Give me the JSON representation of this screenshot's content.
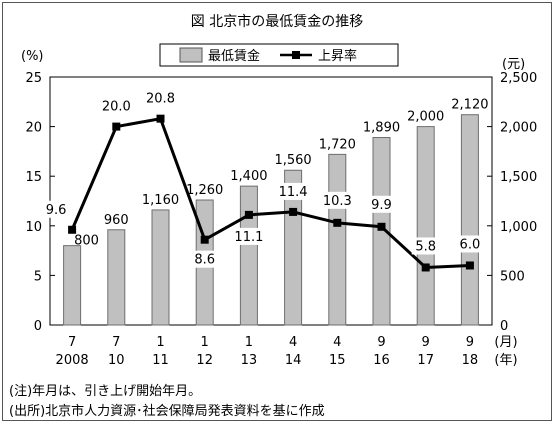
{
  "chart_data": {
    "type": "bar",
    "title": "図 北京市の最低賃金の推移",
    "legend": {
      "bar": "最低賃金",
      "line": "上昇率",
      "position": "top-center"
    },
    "y_left": {
      "label": "(%)",
      "min": 0,
      "max": 25,
      "ticks": [
        0,
        5,
        10,
        15,
        20,
        25
      ]
    },
    "y_right": {
      "label": "(元)",
      "min": 0,
      "max": 2500,
      "ticks": [
        "0",
        "500",
        "1,000",
        "1,500",
        "2,000",
        "2,500"
      ]
    },
    "x_units": {
      "month": "(月)",
      "year": "(年)"
    },
    "categories": [
      {
        "month": "7",
        "year": "2008"
      },
      {
        "month": "7",
        "year": "10"
      },
      {
        "month": "1",
        "year": "11"
      },
      {
        "month": "1",
        "year": "12"
      },
      {
        "month": "1",
        "year": "13"
      },
      {
        "month": "4",
        "year": "14"
      },
      {
        "month": "4",
        "year": "15"
      },
      {
        "month": "9",
        "year": "16"
      },
      {
        "month": "9",
        "year": "17"
      },
      {
        "month": "9",
        "year": "18"
      }
    ],
    "series": [
      {
        "name": "最低賃金",
        "type": "bar",
        "axis": "right",
        "color": "#c0c0c0",
        "values": [
          800,
          960,
          1160,
          1260,
          1400,
          1560,
          1720,
          1890,
          2000,
          2120
        ],
        "labels": [
          "800",
          "960",
          "1,160",
          "1,260",
          "1,400",
          "1,560",
          "1,720",
          "1,890",
          "2,000",
          "2,120"
        ]
      },
      {
        "name": "上昇率",
        "type": "line",
        "axis": "left",
        "color": "#000000",
        "values": [
          9.6,
          20.0,
          20.8,
          8.6,
          11.1,
          11.4,
          10.3,
          9.9,
          5.8,
          6.0
        ],
        "labels": [
          "9.6",
          "20.0",
          "20.8",
          "8.6",
          "11.1",
          "11.4",
          "10.3",
          "9.9",
          "5.8",
          "6.0"
        ]
      }
    ],
    "grid": false
  },
  "notes": {
    "note1": "(注)年月は、引き上げ開始年月。",
    "note2": "(出所)北京市人力資源･社会保障局発表資料を基に作成"
  }
}
